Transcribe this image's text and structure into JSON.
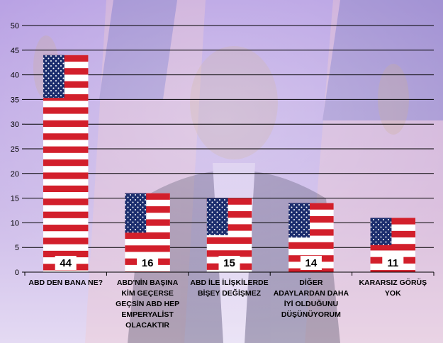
{
  "chart_data": {
    "type": "bar",
    "categories": [
      [
        "ABD DEN BANA NE?"
      ],
      [
        "ABD'NİN BAŞINA",
        "KİM GEÇERSE",
        "GEÇSİN ABD HEP",
        "EMPERYALİST",
        "OLACAKTIR"
      ],
      [
        "ABD İLE İLİŞKİLERDE",
        "BİŞEY DEĞİŞMEZ"
      ],
      [
        "DİĞER",
        "ADAYLARDAN DAHA",
        "İYİ OLDUĞUNU",
        "DÜŞÜNÜYORUM"
      ],
      [
        "KARARSIZ GÖRÜŞ",
        "YOK"
      ]
    ],
    "values": [
      44,
      16,
      15,
      14,
      11
    ],
    "value_labels": [
      "44",
      "16",
      "15",
      "14",
      "11"
    ],
    "ylim": [
      0,
      50
    ],
    "yticks": [
      "0",
      "5",
      "10",
      "15",
      "20",
      "25",
      "30",
      "35",
      "40",
      "45",
      "50"
    ],
    "grid": true,
    "bar_style": "us-flag",
    "colors": {
      "stripe_red": "#d21f2b",
      "stripe_white": "#ffffff",
      "canton_blue": "#1c2e6e",
      "background": "#c7b3e6",
      "gridline": "#000000"
    }
  }
}
